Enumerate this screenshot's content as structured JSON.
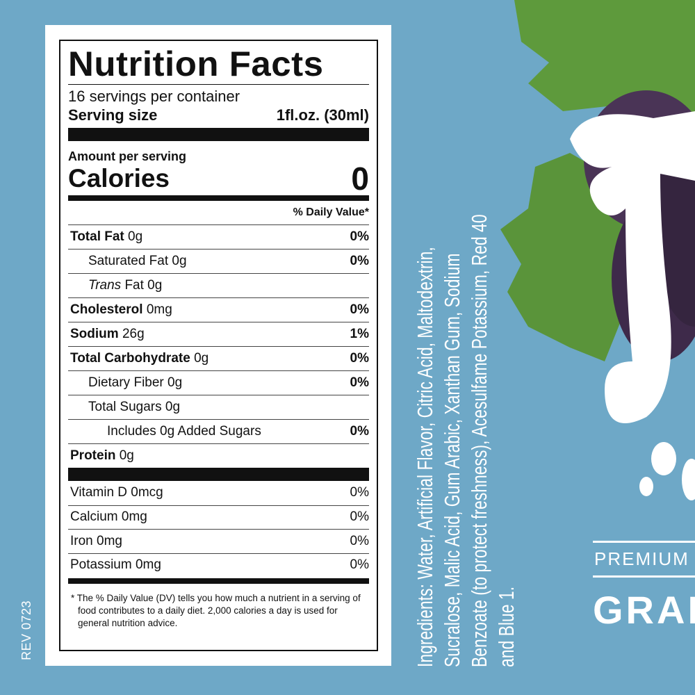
{
  "nutrition": {
    "title": "Nutrition Facts",
    "servings": "16 servings per container",
    "serving_size_label": "Serving size",
    "serving_size_value": "1fl.oz. (30ml)",
    "amount_per_serving": "Amount per serving",
    "calories_label": "Calories",
    "calories_value": "0",
    "daily_value_header": "% Daily Value*",
    "rows": [
      {
        "name": "Total Fat",
        "amount": "0g",
        "dv": "0%"
      },
      {
        "name": "Saturated Fat",
        "amount": "0g",
        "dv": "0%"
      },
      {
        "name": "Trans",
        "amount": "Fat 0g",
        "dv": ""
      },
      {
        "name": "Cholesterol",
        "amount": "0mg",
        "dv": "0%"
      },
      {
        "name": "Sodium",
        "amount": "26g",
        "dv": "1%"
      },
      {
        "name": "Total Carbohydrate",
        "amount": "0g",
        "dv": "0%"
      },
      {
        "name": "Dietary Fiber",
        "amount": "0g",
        "dv": "0%"
      },
      {
        "name": "Total Sugars",
        "amount": "0g",
        "dv": ""
      },
      {
        "name": "Includes 0g Added Sugars",
        "amount": "",
        "dv": "0%"
      },
      {
        "name": "Protein",
        "amount": "0g",
        "dv": ""
      }
    ],
    "vitamins": [
      {
        "name": "Vitamin D 0mcg",
        "dv": "0%"
      },
      {
        "name": "Calcium 0mg",
        "dv": "0%"
      },
      {
        "name": "Iron 0mg",
        "dv": "0%"
      },
      {
        "name": "Potassium 0mg",
        "dv": "0%"
      }
    ],
    "footnote": "* The % Daily Value (DV) tells you how much a nutrient in a serving of food contributes to a daily diet. 2,000 calories a day is used for general nutrition advice."
  },
  "rev": "REV 0723",
  "ingredients": [
    "Ingredients: Water, Artificial Flavor, Citric Acid, Maltodextrin,",
    "Sucralose, Malic Acid, Gum Arabic, Xanthan Gum, Sodium",
    "Benzoate (to protect freshness), Acesulfame Potassium, Red 40",
    "and Blue 1."
  ],
  "brand": {
    "tagline": "PREMIUM S",
    "flavor": "GRAP"
  },
  "colors": {
    "background": "#6ea8c7",
    "leaf": "#5e9a3c",
    "grape": "#3e2a4a"
  }
}
